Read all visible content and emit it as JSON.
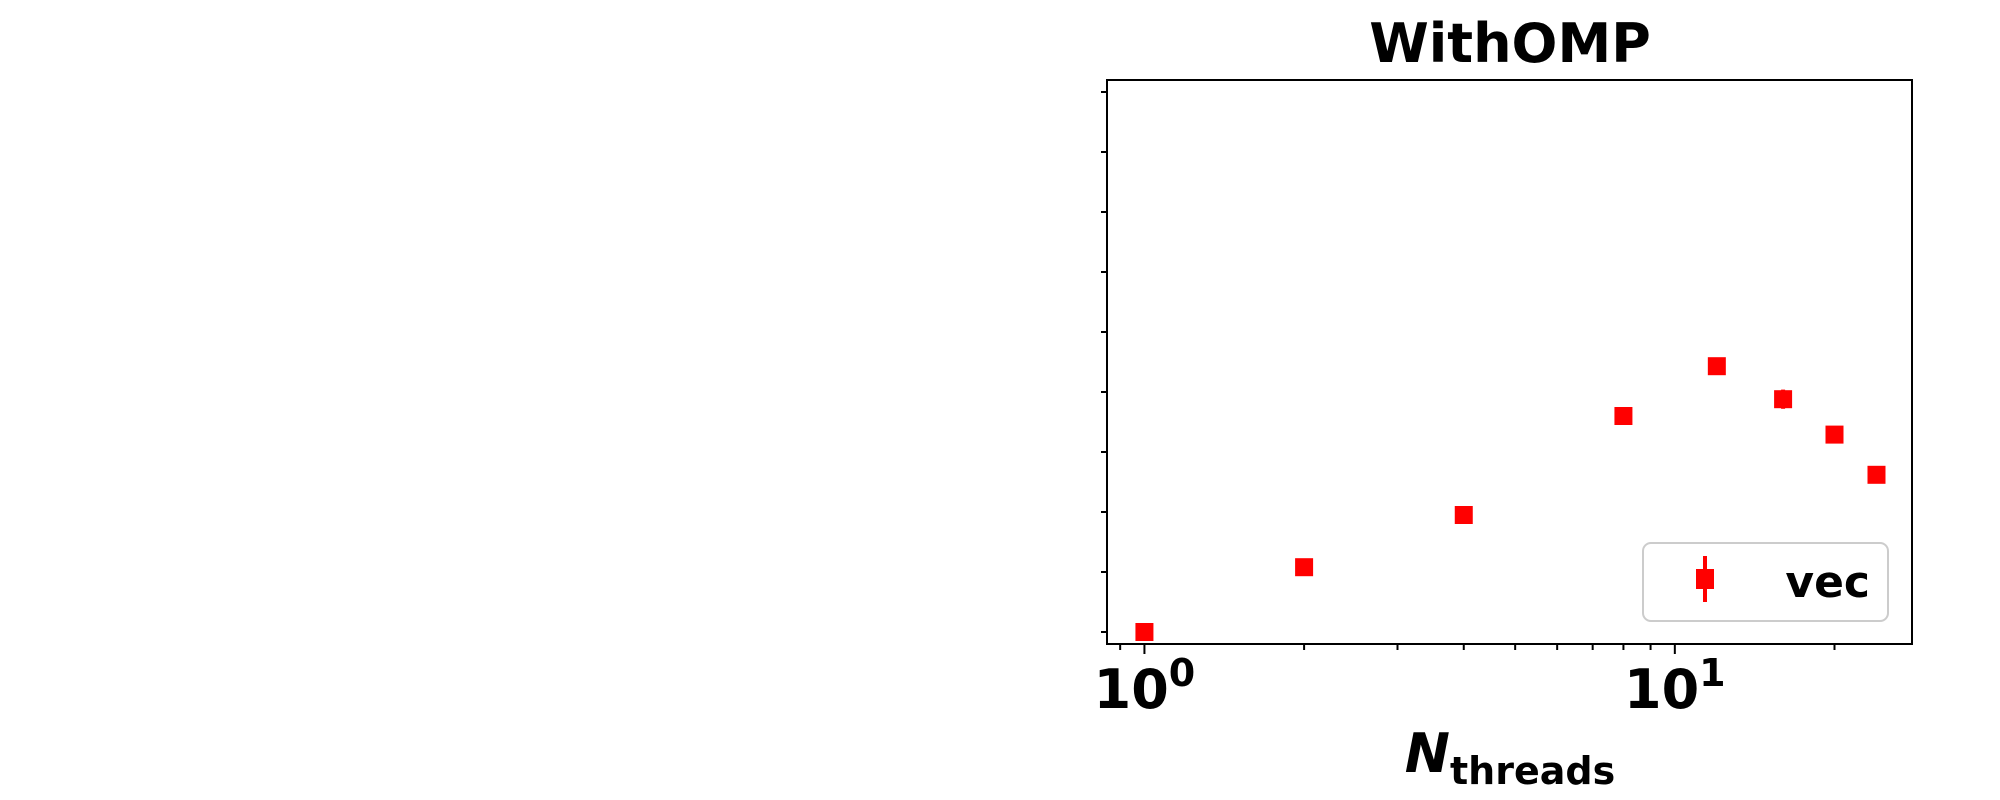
{
  "chart_data": {
    "type": "scatter",
    "title": "WithOMP",
    "xlabel": {
      "main": "N",
      "sub": "threads"
    },
    "ylabel": "",
    "x_scale": "log",
    "xlim": [
      0.85,
      28
    ],
    "x_ticks": [
      {
        "base": "10",
        "exp": "0",
        "value": 1
      },
      {
        "base": "10",
        "exp": "1",
        "value": 10
      }
    ],
    "ylim": [
      0.0,
      9.2
    ],
    "y_tick_values": [
      0,
      1,
      2,
      3,
      4,
      5,
      6,
      7,
      8,
      9
    ],
    "y_tick_labels_visible": false,
    "grid": false,
    "legend": {
      "position": "lower-right",
      "entries": [
        "vec"
      ]
    },
    "series": [
      {
        "name": "vec",
        "color": "#ff0000",
        "marker": "square",
        "x": [
          1,
          2,
          4,
          8,
          12,
          16,
          20,
          24
        ],
        "y": [
          0.0,
          1.08,
          1.95,
          3.6,
          4.43,
          3.88,
          3.29,
          2.62
        ],
        "yerr": [
          0.02,
          0.03,
          0.03,
          0.04,
          0.06,
          0.16,
          0.14,
          0.08
        ]
      }
    ]
  }
}
